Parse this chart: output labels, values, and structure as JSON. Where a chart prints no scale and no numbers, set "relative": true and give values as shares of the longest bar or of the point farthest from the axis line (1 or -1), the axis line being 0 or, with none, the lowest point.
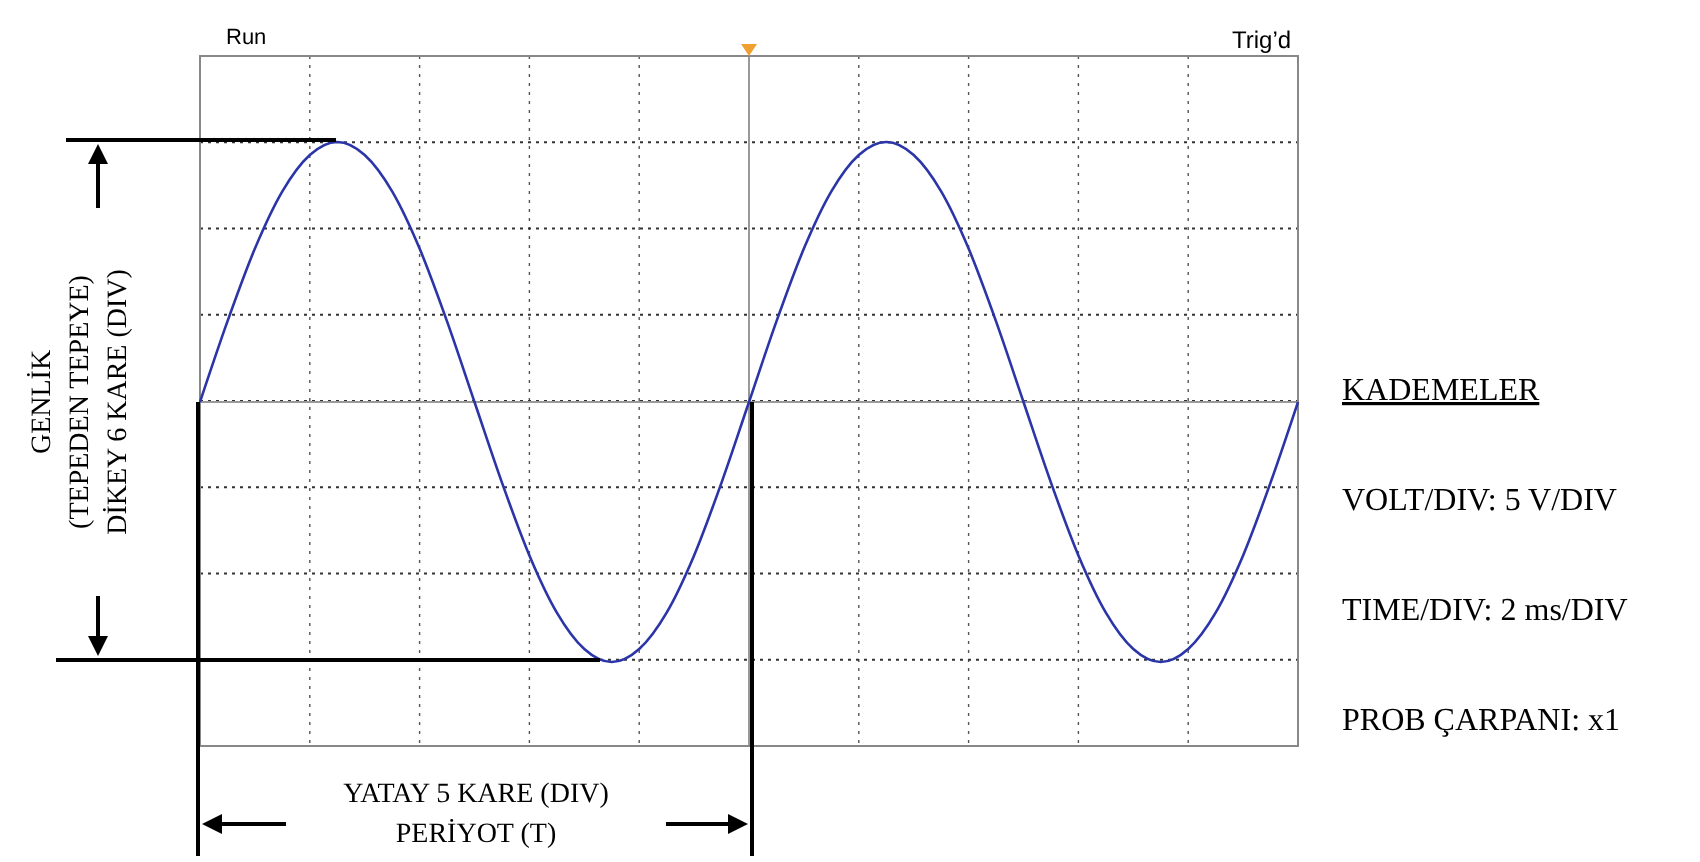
{
  "chart_data": {
    "type": "line",
    "relative": true,
    "grid": true,
    "marker": "none",
    "line_style": "solid",
    "categories": [
      null,
      null,
      null,
      null,
      null,
      null,
      null,
      null,
      null,
      null,
      null,
      null,
      null,
      null,
      null,
      null,
      null,
      null,
      null,
      null,
      null,
      null,
      null,
      null,
      null,
      null,
      null,
      null,
      null,
      null,
      null,
      null,
      null,
      null,
      null,
      null,
      null,
      null,
      null,
      null,
      null
    ],
    "series": [
      {
        "color": "#2b35a8",
        "values": [
          0,
          0.31,
          0.59,
          0.81,
          0.95,
          1,
          0.95,
          0.81,
          0.59,
          0.31,
          0,
          -0.31,
          -0.59,
          -0.81,
          -0.95,
          -1,
          -0.95,
          -0.81,
          -0.59,
          -0.31,
          0,
          0.31,
          0.59,
          0.81,
          0.95,
          1,
          0.95,
          0.81,
          0.59,
          0.31,
          0,
          -0.31,
          -0.59,
          -0.81,
          -0.95,
          -1,
          -0.95,
          -0.81,
          -0.59,
          -0.31,
          0
        ]
      }
    ],
    "annotations": [
      "Run",
      "Trig’d",
      "GENLİK",
      "(TEPEDEN TEPEYE)",
      "DİKEY 6 KARE (DIV)",
      "YATAY 5 KARE (DIV)",
      "PERİYOT (T)",
      "KADEMELER",
      "VOLT/DIV: 5 V/DIV",
      "TIME/DIV: 2 ms/DIV",
      "PROB ÇARPANI: x1"
    ]
  }
}
